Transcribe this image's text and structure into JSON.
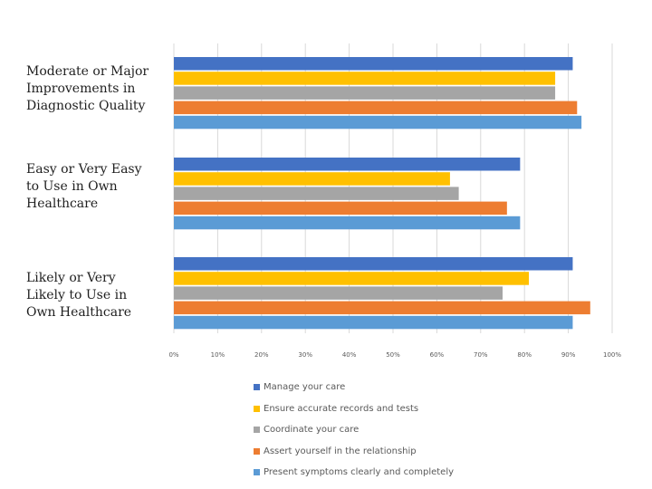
{
  "chart_data": {
    "type": "bar",
    "orientation": "horizontal",
    "categories": [
      "Moderate or Major Improvements in Diagnostic Quality",
      "Easy or Very Easy to Use in Own Healthcare",
      "Likely or Very Likely to Use in Own Healthcare"
    ],
    "series": [
      {
        "name": "Manage your care",
        "color": "#4472C4",
        "values": [
          91,
          79,
          91
        ]
      },
      {
        "name": "Ensure accurate records and tests",
        "color": "#FFC000",
        "values": [
          87,
          63,
          81
        ]
      },
      {
        "name": "Coordinate your care",
        "color": "#A5A5A5",
        "values": [
          87,
          65,
          75
        ]
      },
      {
        "name": "Assert yourself in the relationship",
        "color": "#ED7D31",
        "values": [
          92,
          76,
          95
        ]
      },
      {
        "name": "Present symptoms clearly and completely",
        "color": "#5B9BD5",
        "values": [
          93,
          79,
          91
        ]
      }
    ],
    "xlim": [
      0,
      100
    ],
    "x_ticks": [
      "0%",
      "10%",
      "20%",
      "30%",
      "40%",
      "50%",
      "60%",
      "70%",
      "80%",
      "90%",
      "100%"
    ],
    "grid": true,
    "legend_position": "bottom",
    "title": "",
    "xlabel": "",
    "ylabel": ""
  },
  "category_labels": [
    "Moderate or Major\nImprovements in\nDiagnostic Quality",
    "Easy or Very Easy\nto Use in Own\nHealthcare",
    "Likely or Very\nLikely to Use in\nOwn Healthcare"
  ]
}
